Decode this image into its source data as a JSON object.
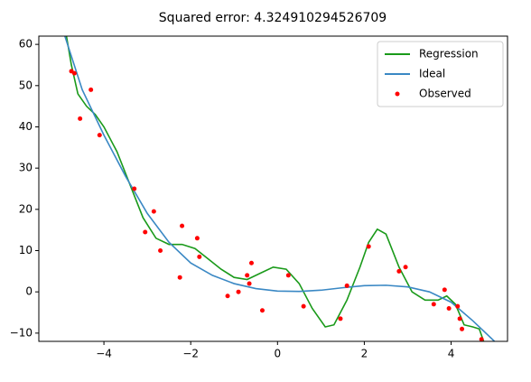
{
  "chart_data": {
    "type": "line",
    "title": "Squared error: 4.324910294526709",
    "xlim": [
      -5.5,
      5.3
    ],
    "ylim": [
      -12,
      62
    ],
    "xticks": [
      {
        "value": -4,
        "label": "−4"
      },
      {
        "value": -2,
        "label": "−2"
      },
      0,
      2,
      4
    ],
    "yticks": [
      {
        "value": -10,
        "label": "−10"
      },
      0,
      10,
      20,
      30,
      40,
      50,
      60
    ],
    "grid": false,
    "legend": "upper right",
    "series": [
      {
        "name": "Regression",
        "color": "#1a9a1a",
        "kind": "line",
        "x": [
          -4.88,
          -4.75,
          -4.6,
          -4.4,
          -4.2,
          -4.0,
          -3.7,
          -3.4,
          -3.1,
          -2.8,
          -2.5,
          -2.2,
          -1.9,
          -1.6,
          -1.3,
          -1.0,
          -0.7,
          -0.4,
          -0.1,
          0.2,
          0.5,
          0.8,
          1.1,
          1.3,
          1.6,
          1.9,
          2.1,
          2.3,
          2.5,
          2.8,
          3.1,
          3.4,
          3.7,
          3.9,
          4.1,
          4.3,
          4.5,
          4.65,
          4.75
        ],
        "y": [
          63,
          55,
          48,
          45,
          43,
          40,
          34,
          26,
          18,
          13,
          11.5,
          11.5,
          10.5,
          8,
          5.5,
          3.5,
          3,
          4.5,
          6,
          5.5,
          2,
          -4,
          -8.5,
          -8,
          -2,
          6,
          12,
          15.2,
          14,
          6,
          0,
          -2,
          -2,
          -1,
          -3,
          -8,
          -8.5,
          -9,
          -12
        ]
      },
      {
        "name": "Ideal",
        "color": "#3a88c4",
        "kind": "line",
        "x": [
          -4.9,
          -4.5,
          -4.0,
          -3.5,
          -3.0,
          -2.5,
          -2.0,
          -1.5,
          -1.0,
          -0.5,
          0,
          0.5,
          1.0,
          1.5,
          2.0,
          2.5,
          3.0,
          3.5,
          4.0,
          4.5,
          5.0
        ],
        "y": [
          62,
          49,
          38,
          28,
          19,
          12,
          7,
          4,
          2,
          0.8,
          0.2,
          0.1,
          0.4,
          1,
          1.5,
          1.6,
          1.2,
          0,
          -2.5,
          -7,
          -12
        ]
      },
      {
        "name": "Observed",
        "color": "#ff0000",
        "kind": "scatter",
        "x": [
          -4.75,
          -4.68,
          -4.55,
          -4.3,
          -4.1,
          -3.3,
          -3.05,
          -2.85,
          -2.7,
          -2.25,
          -2.2,
          -1.85,
          -1.8,
          -1.15,
          -0.9,
          -0.7,
          -0.65,
          -0.6,
          -0.35,
          0.25,
          0.6,
          1.45,
          1.6,
          2.1,
          2.8,
          2.95,
          3.6,
          3.85,
          3.95,
          4.15,
          4.2,
          4.25,
          4.7
        ],
        "y": [
          53.5,
          53,
          42,
          49,
          38,
          25,
          14.5,
          19.5,
          10,
          3.5,
          16,
          13,
          8.5,
          -1,
          0,
          4,
          2,
          7,
          -4.5,
          4,
          -3.5,
          -6.5,
          1.5,
          11,
          5,
          6,
          -3,
          0.5,
          -4,
          -3.5,
          -6.5,
          -9,
          -11.5
        ]
      }
    ]
  }
}
